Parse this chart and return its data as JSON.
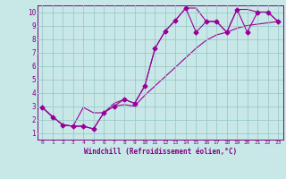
{
  "xlabel": "Windchill (Refroidissement éolien,°C)",
  "xlim": [
    -0.5,
    23.5
  ],
  "ylim": [
    0.5,
    10.5
  ],
  "xticks": [
    0,
    1,
    2,
    3,
    4,
    5,
    6,
    7,
    8,
    9,
    10,
    11,
    12,
    13,
    14,
    15,
    16,
    17,
    18,
    19,
    20,
    21,
    22,
    23
  ],
  "yticks": [
    1,
    2,
    3,
    4,
    5,
    6,
    7,
    8,
    9,
    10
  ],
  "line_color": "#990099",
  "bg_color": "#c8e8e8",
  "grid_color": "#9cc8c8",
  "series1_x": [
    0,
    1,
    2,
    3,
    4,
    5,
    6,
    7,
    8,
    9,
    10,
    11,
    12,
    13,
    14,
    15,
    16,
    17,
    18,
    19,
    20,
    21,
    22,
    23
  ],
  "series1_y": [
    2.9,
    2.2,
    1.6,
    1.5,
    1.5,
    1.3,
    2.5,
    3.0,
    3.5,
    3.2,
    4.5,
    7.3,
    8.6,
    9.4,
    10.3,
    8.5,
    9.3,
    9.3,
    8.5,
    10.2,
    8.5,
    10.0,
    10.0,
    9.3
  ],
  "series2_x": [
    0,
    1,
    2,
    3,
    4,
    5,
    6,
    7,
    8,
    9,
    10,
    11,
    12,
    13,
    14,
    15,
    16,
    17,
    18,
    19,
    20,
    21,
    22,
    23
  ],
  "series2_y": [
    2.9,
    2.2,
    1.6,
    1.5,
    1.5,
    1.3,
    2.5,
    3.0,
    3.1,
    3.0,
    3.8,
    4.5,
    5.2,
    5.9,
    6.6,
    7.3,
    7.9,
    8.3,
    8.5,
    8.8,
    9.0,
    9.1,
    9.2,
    9.3
  ],
  "series3_x": [
    0,
    1,
    2,
    3,
    4,
    5,
    6,
    7,
    8,
    9,
    10,
    11,
    12,
    13,
    14,
    15,
    16,
    17,
    18,
    19,
    20,
    21,
    22,
    23
  ],
  "series3_y": [
    2.9,
    2.2,
    1.6,
    1.5,
    2.9,
    2.5,
    2.5,
    3.2,
    3.5,
    3.2,
    4.5,
    7.3,
    8.6,
    9.4,
    10.3,
    10.3,
    9.3,
    9.3,
    8.5,
    10.2,
    10.2,
    10.0,
    10.0,
    9.3
  ],
  "markersize": 2.5,
  "linewidth": 0.8
}
